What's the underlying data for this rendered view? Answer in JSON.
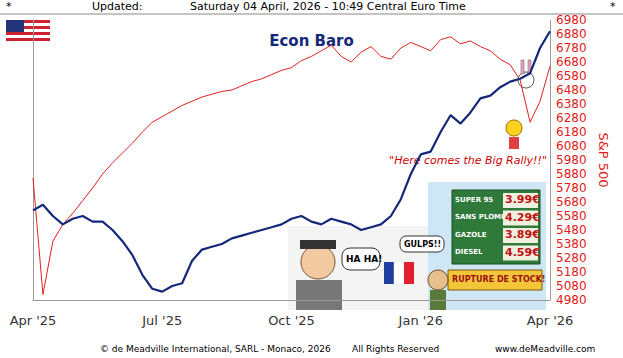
{
  "header": {
    "left": "*",
    "updated": "Updated:",
    "date": "Saturday 04 April, 2026 - 10:49 Central Euro Time",
    "right": "*"
  },
  "footer": {
    "copyright": "© de Meadville International, SARL - Monaco, 2026",
    "rights": "All Rights Reserved",
    "url": "www.deMeadville.com"
  },
  "annotations": [
    "\"Here comes the Big Rally!!\"",
    "HA HA!",
    "GULPS!!",
    "RUPTURE DE STOCK!"
  ],
  "fuel_prices": [
    {
      "label": "SUPER 95",
      "price": "3.99€"
    },
    {
      "label": "SANS PLOMB",
      "price": "4.29€"
    },
    {
      "label": "GAZOLE",
      "price": "3.89€"
    },
    {
      "label": "DIESEL",
      "price": "4.59€"
    }
  ],
  "chart_data": {
    "type": "line",
    "title": "Econ Baro",
    "y_label": "S&P 500",
    "categories": [
      "Apr '25",
      null,
      null,
      null,
      null,
      null,
      null,
      null,
      null,
      null,
      null,
      null,
      null,
      "Jul '25",
      null,
      null,
      null,
      null,
      null,
      null,
      null,
      null,
      null,
      null,
      null,
      null,
      "Oct '25",
      null,
      null,
      null,
      null,
      null,
      null,
      null,
      null,
      null,
      null,
      null,
      null,
      "Jan '26",
      null,
      null,
      null,
      null,
      null,
      null,
      null,
      null,
      null,
      null,
      null,
      null,
      "Apr '26"
    ],
    "series": [
      {
        "name": "S&P 500",
        "color": "#e02020",
        "axis": "y",
        "values": [
          5850,
          5020,
          5400,
          5520,
          5600,
          5690,
          5780,
          5880,
          5960,
          6030,
          6100,
          6180,
          6250,
          6290,
          6330,
          6370,
          6400,
          6430,
          6450,
          6470,
          6480,
          6510,
          6540,
          6560,
          6590,
          6620,
          6640,
          6690,
          6720,
          6760,
          6800,
          6720,
          6680,
          6750,
          6790,
          6720,
          6700,
          6780,
          6820,
          6790,
          6760,
          6840,
          6860,
          6810,
          6830,
          6790,
          6760,
          6700,
          6660,
          6550,
          6250,
          6400,
          6650
        ]
      },
      {
        "name": "Econ Baro",
        "color": "#14287a",
        "axis": "y2",
        "values": [
          32,
          34,
          30,
          27,
          29,
          30,
          28,
          28,
          25,
          21,
          16,
          9,
          4,
          3,
          5,
          6,
          14,
          18,
          19,
          20,
          22,
          23,
          24,
          25,
          26,
          27,
          29,
          30,
          28,
          27,
          29,
          28,
          27,
          25,
          26,
          27,
          30,
          36,
          45,
          52,
          53,
          60,
          66,
          63,
          67,
          72,
          73,
          76,
          78,
          79,
          81,
          90,
          96
        ]
      }
    ],
    "ylim": [
      4980,
      6980
    ],
    "yticks": [
      4980,
      5080,
      5180,
      5280,
      5380,
      5480,
      5580,
      5680,
      5780,
      5880,
      5980,
      6080,
      6180,
      6280,
      6380,
      6480,
      6580,
      6680,
      6780,
      6880,
      6980
    ],
    "y2lim": [
      0,
      100
    ],
    "grid": false
  }
}
